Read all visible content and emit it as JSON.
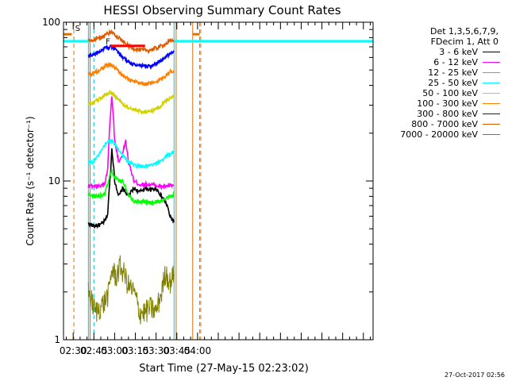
{
  "chart_data": {
    "type": "line",
    "title": "HESSI Observing Summary Count Rates",
    "xlabel": "Start Time (27-May-15 02:23:02)",
    "ylabel": "Count Rate (s⁻¹ detector⁻¹)",
    "yscale": "log",
    "ylim": [
      1,
      100
    ],
    "yticks": [
      {
        "v": 1,
        "label": "1"
      },
      {
        "v": 10,
        "label": "10"
      },
      {
        "v": 100,
        "label": "100"
      }
    ],
    "xlim_min": [
      23,
      247
    ],
    "xticks": [
      {
        "m": 30,
        "label": "02:30"
      },
      {
        "m": 45,
        "label": "02:45"
      },
      {
        "m": 60,
        "label": "03:00"
      },
      {
        "m": 75,
        "label": "03:15"
      },
      {
        "m": 90,
        "label": "03:30"
      },
      {
        "m": 105,
        "label": "03:45"
      },
      {
        "m": 120,
        "label": "04:00"
      }
    ],
    "series": [
      {
        "name": "3 - 6 keV",
        "color": "#000000",
        "points": [
          [
            41,
            5.4
          ],
          [
            45,
            5.2
          ],
          [
            50,
            5.3
          ],
          [
            53,
            5.6
          ],
          [
            55,
            6.2
          ],
          [
            57,
            11
          ],
          [
            58,
            16
          ],
          [
            59,
            13
          ],
          [
            60,
            10
          ],
          [
            63,
            8
          ],
          [
            66,
            9
          ],
          [
            70,
            8
          ],
          [
            74,
            9
          ],
          [
            78,
            8.5
          ],
          [
            82,
            9
          ],
          [
            86,
            8.8
          ],
          [
            90,
            9
          ],
          [
            94,
            8
          ],
          [
            98,
            7
          ],
          [
            100,
            6
          ],
          [
            103,
            5.5
          ]
        ]
      },
      {
        "name": "6 - 12 keV",
        "color": "#ff00ff",
        "points": [
          [
            41,
            9.3
          ],
          [
            45,
            9.2
          ],
          [
            50,
            9.3
          ],
          [
            53,
            9.6
          ],
          [
            55,
            12
          ],
          [
            57,
            26
          ],
          [
            58,
            34
          ],
          [
            59,
            26
          ],
          [
            60,
            18
          ],
          [
            63,
            13
          ],
          [
            66,
            15
          ],
          [
            68,
            18
          ],
          [
            70,
            13
          ],
          [
            74,
            10
          ],
          [
            78,
            9.5
          ],
          [
            82,
            9.5
          ],
          [
            86,
            9.5
          ],
          [
            90,
            9.4
          ],
          [
            94,
            9.2
          ],
          [
            98,
            9.3
          ],
          [
            103,
            9.4
          ]
        ]
      },
      {
        "name": "12 - 25 keV",
        "color": "#00ff00",
        "points": [
          [
            41,
            8.1
          ],
          [
            45,
            8
          ],
          [
            50,
            8.1
          ],
          [
            53,
            8.4
          ],
          [
            55,
            9.5
          ],
          [
            57,
            11
          ],
          [
            58,
            11.5
          ],
          [
            60,
            10.5
          ],
          [
            63,
            10
          ],
          [
            66,
            10
          ],
          [
            70,
            8.2
          ],
          [
            74,
            7.5
          ],
          [
            78,
            7.4
          ],
          [
            82,
            7.4
          ],
          [
            86,
            7.3
          ],
          [
            90,
            7.4
          ],
          [
            94,
            7.5
          ],
          [
            98,
            7.8
          ],
          [
            103,
            8.2
          ]
        ]
      },
      {
        "name": "25 - 50 keV",
        "color": "#00ffff",
        "points": [
          [
            41,
            13
          ],
          [
            44,
            13.2
          ],
          [
            47,
            14
          ],
          [
            50,
            15.2
          ],
          [
            53,
            16.8
          ],
          [
            56,
            18
          ],
          [
            58,
            17.8
          ],
          [
            60,
            17
          ],
          [
            63,
            15.8
          ],
          [
            66,
            14.4
          ],
          [
            70,
            13.2
          ],
          [
            74,
            12.6
          ],
          [
            78,
            12.4
          ],
          [
            82,
            12.3
          ],
          [
            86,
            12.5
          ],
          [
            90,
            12.8
          ],
          [
            94,
            13.6
          ],
          [
            98,
            14.4
          ],
          [
            101,
            15
          ],
          [
            103,
            15.2
          ]
        ]
      },
      {
        "name": "50 - 100 keV",
        "color": "#d2d200",
        "points": [
          [
            41,
            31
          ],
          [
            44,
            31
          ],
          [
            47,
            32
          ],
          [
            50,
            33.5
          ],
          [
            53,
            35
          ],
          [
            56,
            36
          ],
          [
            58,
            35.5
          ],
          [
            60,
            34.5
          ],
          [
            63,
            32.5
          ],
          [
            66,
            30.5
          ],
          [
            70,
            29
          ],
          [
            74,
            28
          ],
          [
            78,
            27.5
          ],
          [
            82,
            27.3
          ],
          [
            86,
            27.6
          ],
          [
            90,
            28.4
          ],
          [
            94,
            30
          ],
          [
            98,
            32.5
          ],
          [
            101,
            34
          ],
          [
            103,
            34.5
          ]
        ]
      },
      {
        "name": "100 - 300 keV",
        "color": "#ff8000",
        "points": [
          [
            41,
            47
          ],
          [
            44,
            47.5
          ],
          [
            47,
            49
          ],
          [
            50,
            51
          ],
          [
            53,
            53
          ],
          [
            56,
            54
          ],
          [
            58,
            53.5
          ],
          [
            60,
            52
          ],
          [
            63,
            49
          ],
          [
            66,
            46
          ],
          [
            70,
            43.5
          ],
          [
            74,
            42
          ],
          [
            78,
            41.2
          ],
          [
            82,
            40.8
          ],
          [
            86,
            41
          ],
          [
            90,
            42
          ],
          [
            94,
            44
          ],
          [
            98,
            47
          ],
          [
            101,
            49
          ],
          [
            103,
            50
          ]
        ]
      },
      {
        "name": "300 - 800 keV",
        "color": "#0000ff",
        "points": [
          [
            41,
            62
          ],
          [
            44,
            62
          ],
          [
            47,
            64
          ],
          [
            50,
            66.5
          ],
          [
            53,
            69
          ],
          [
            56,
            70
          ],
          [
            58,
            69.5
          ],
          [
            60,
            67.5
          ],
          [
            63,
            64
          ],
          [
            66,
            60
          ],
          [
            70,
            56.5
          ],
          [
            74,
            54
          ],
          [
            78,
            53
          ],
          [
            82,
            52.5
          ],
          [
            86,
            53
          ],
          [
            90,
            54.5
          ],
          [
            94,
            57.5
          ],
          [
            98,
            61.5
          ],
          [
            101,
            64
          ],
          [
            103,
            65
          ]
        ]
      },
      {
        "name": "800 - 7000 keV",
        "color": "#e05a00",
        "points": [
          [
            41,
            77
          ],
          [
            44,
            77
          ],
          [
            47,
            78
          ],
          [
            50,
            80
          ],
          [
            53,
            83
          ],
          [
            56,
            86
          ],
          [
            58,
            86
          ],
          [
            60,
            84.5
          ],
          [
            63,
            80
          ],
          [
            66,
            75.5
          ],
          [
            70,
            71
          ],
          [
            74,
            68.5
          ],
          [
            78,
            67
          ],
          [
            82,
            66.5
          ],
          [
            86,
            67
          ],
          [
            90,
            68.5
          ],
          [
            94,
            71
          ],
          [
            98,
            74
          ],
          [
            101,
            76.5
          ],
          [
            103,
            77.5
          ]
        ]
      },
      {
        "name": "7000 - 20000 keV",
        "color": "#808000",
        "points": [
          [
            41,
            2
          ],
          [
            46,
            1.5
          ],
          [
            52,
            1.7
          ],
          [
            56,
            2
          ],
          [
            58,
            2.8
          ],
          [
            61,
            2.5
          ],
          [
            64,
            2.9
          ],
          [
            67,
            2.6
          ],
          [
            70,
            2.2
          ],
          [
            74,
            2
          ],
          [
            78,
            1.5
          ],
          [
            82,
            1.5
          ],
          [
            86,
            1.6
          ],
          [
            90,
            1.5
          ],
          [
            94,
            2
          ],
          [
            97,
            2.7
          ],
          [
            100,
            2.3
          ],
          [
            103,
            2.6
          ]
        ]
      }
    ],
    "annotations": [
      {
        "text": "S",
        "color": "#ff8000"
      },
      {
        "text": "F",
        "color": "#ff0000"
      }
    ],
    "legend_header": [
      "Det 1,3,5,6,7,9,",
      "FDecim 1, Att 0"
    ],
    "legend_placement": "right",
    "timestamp": "27-Oct-2017 02:56"
  }
}
